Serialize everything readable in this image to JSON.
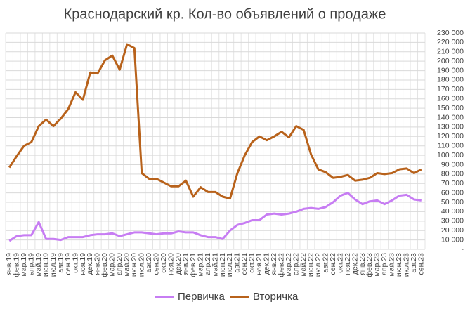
{
  "chart_data": {
    "type": "line",
    "title": "Краснодарский кр. Кол-во объявлений о продаже",
    "categories": [
      "янв.19",
      "фев.19",
      "мар.19",
      "апр.19",
      "май.19",
      "июн.19",
      "июл.19",
      "авг.19",
      "сен.19",
      "окт.19",
      "ноя.19",
      "дек.19",
      "янв.20",
      "фев.20",
      "мар.20",
      "апр.20",
      "май.20",
      "июн.20",
      "июл.20",
      "авг.20",
      "сен.20",
      "окт.20",
      "ноя.20",
      "дек.20",
      "янв.21",
      "фев.21",
      "мар.21",
      "апр.21",
      "май.21",
      "июн.21",
      "июл.21",
      "авг.21",
      "сен.21",
      "окт.21",
      "ноя.21",
      "дек.21",
      "янв.22",
      "фев.22",
      "мар.22",
      "апр.22",
      "май.22",
      "июн.22",
      "июл.22",
      "авг.22",
      "сен.22",
      "окт.22",
      "ноя.22",
      "дек.22",
      "янв.23",
      "фев.23",
      "мар.23",
      "апр.23",
      "май.23",
      "июн.23",
      "июл.23",
      "авг.23",
      "сен.23"
    ],
    "series": [
      {
        "name": "Первичка",
        "color": "#c77df3",
        "values": [
          9000,
          14000,
          15000,
          15000,
          29000,
          11000,
          11000,
          10000,
          13000,
          13000,
          13000,
          15000,
          16000,
          16000,
          17000,
          14000,
          16000,
          18000,
          18000,
          17000,
          16000,
          17000,
          17000,
          19000,
          18000,
          18000,
          15000,
          13000,
          13000,
          11000,
          20000,
          26000,
          28000,
          31000,
          31000,
          37000,
          38000,
          37000,
          38000,
          40000,
          43000,
          44000,
          43000,
          45000,
          50000,
          57000,
          60000,
          53000,
          48000,
          51000,
          52000,
          48000,
          52000,
          57000,
          58000,
          53000,
          52000
        ]
      },
      {
        "name": "Вторичка",
        "color": "#b8621b",
        "values": [
          87000,
          99000,
          110000,
          114000,
          131000,
          138000,
          131000,
          139000,
          149000,
          167000,
          159000,
          188000,
          187000,
          201000,
          206000,
          191000,
          218000,
          214000,
          81000,
          75000,
          75000,
          71000,
          67000,
          67000,
          73000,
          56000,
          66000,
          61000,
          61000,
          56000,
          54000,
          81000,
          100000,
          114000,
          120000,
          116000,
          120000,
          125000,
          119000,
          131000,
          127000,
          101000,
          85000,
          82000,
          76000,
          77000,
          79000,
          73000,
          74000,
          76000,
          81000,
          80000,
          81000,
          85000,
          86000,
          81000,
          85000
        ]
      }
    ],
    "ylim": [
      0,
      230000
    ],
    "yticks": [
      {
        "value": 0,
        "label": "-"
      },
      {
        "value": 10000,
        "label": "10 000"
      },
      {
        "value": 20000,
        "label": "20 000"
      },
      {
        "value": 30000,
        "label": "30 000"
      },
      {
        "value": 40000,
        "label": "40 000"
      },
      {
        "value": 50000,
        "label": "50 000"
      },
      {
        "value": 60000,
        "label": "60 000"
      },
      {
        "value": 70000,
        "label": "70 000"
      },
      {
        "value": 80000,
        "label": "80 000"
      },
      {
        "value": 90000,
        "label": "90 000"
      },
      {
        "value": 100000,
        "label": "100 000"
      },
      {
        "value": 110000,
        "label": "110 000"
      },
      {
        "value": 120000,
        "label": "120 000"
      },
      {
        "value": 130000,
        "label": "130 000"
      },
      {
        "value": 140000,
        "label": "140 000"
      },
      {
        "value": 150000,
        "label": "150 000"
      },
      {
        "value": 160000,
        "label": "160 000"
      },
      {
        "value": 170000,
        "label": "170 000"
      },
      {
        "value": 180000,
        "label": "180 000"
      },
      {
        "value": 190000,
        "label": "190 000"
      },
      {
        "value": 200000,
        "label": "200 000"
      },
      {
        "value": 210000,
        "label": "210 000"
      },
      {
        "value": 220000,
        "label": "220 000"
      },
      {
        "value": 230000,
        "label": "230 000"
      }
    ],
    "grid": true,
    "legend": "bottom"
  }
}
